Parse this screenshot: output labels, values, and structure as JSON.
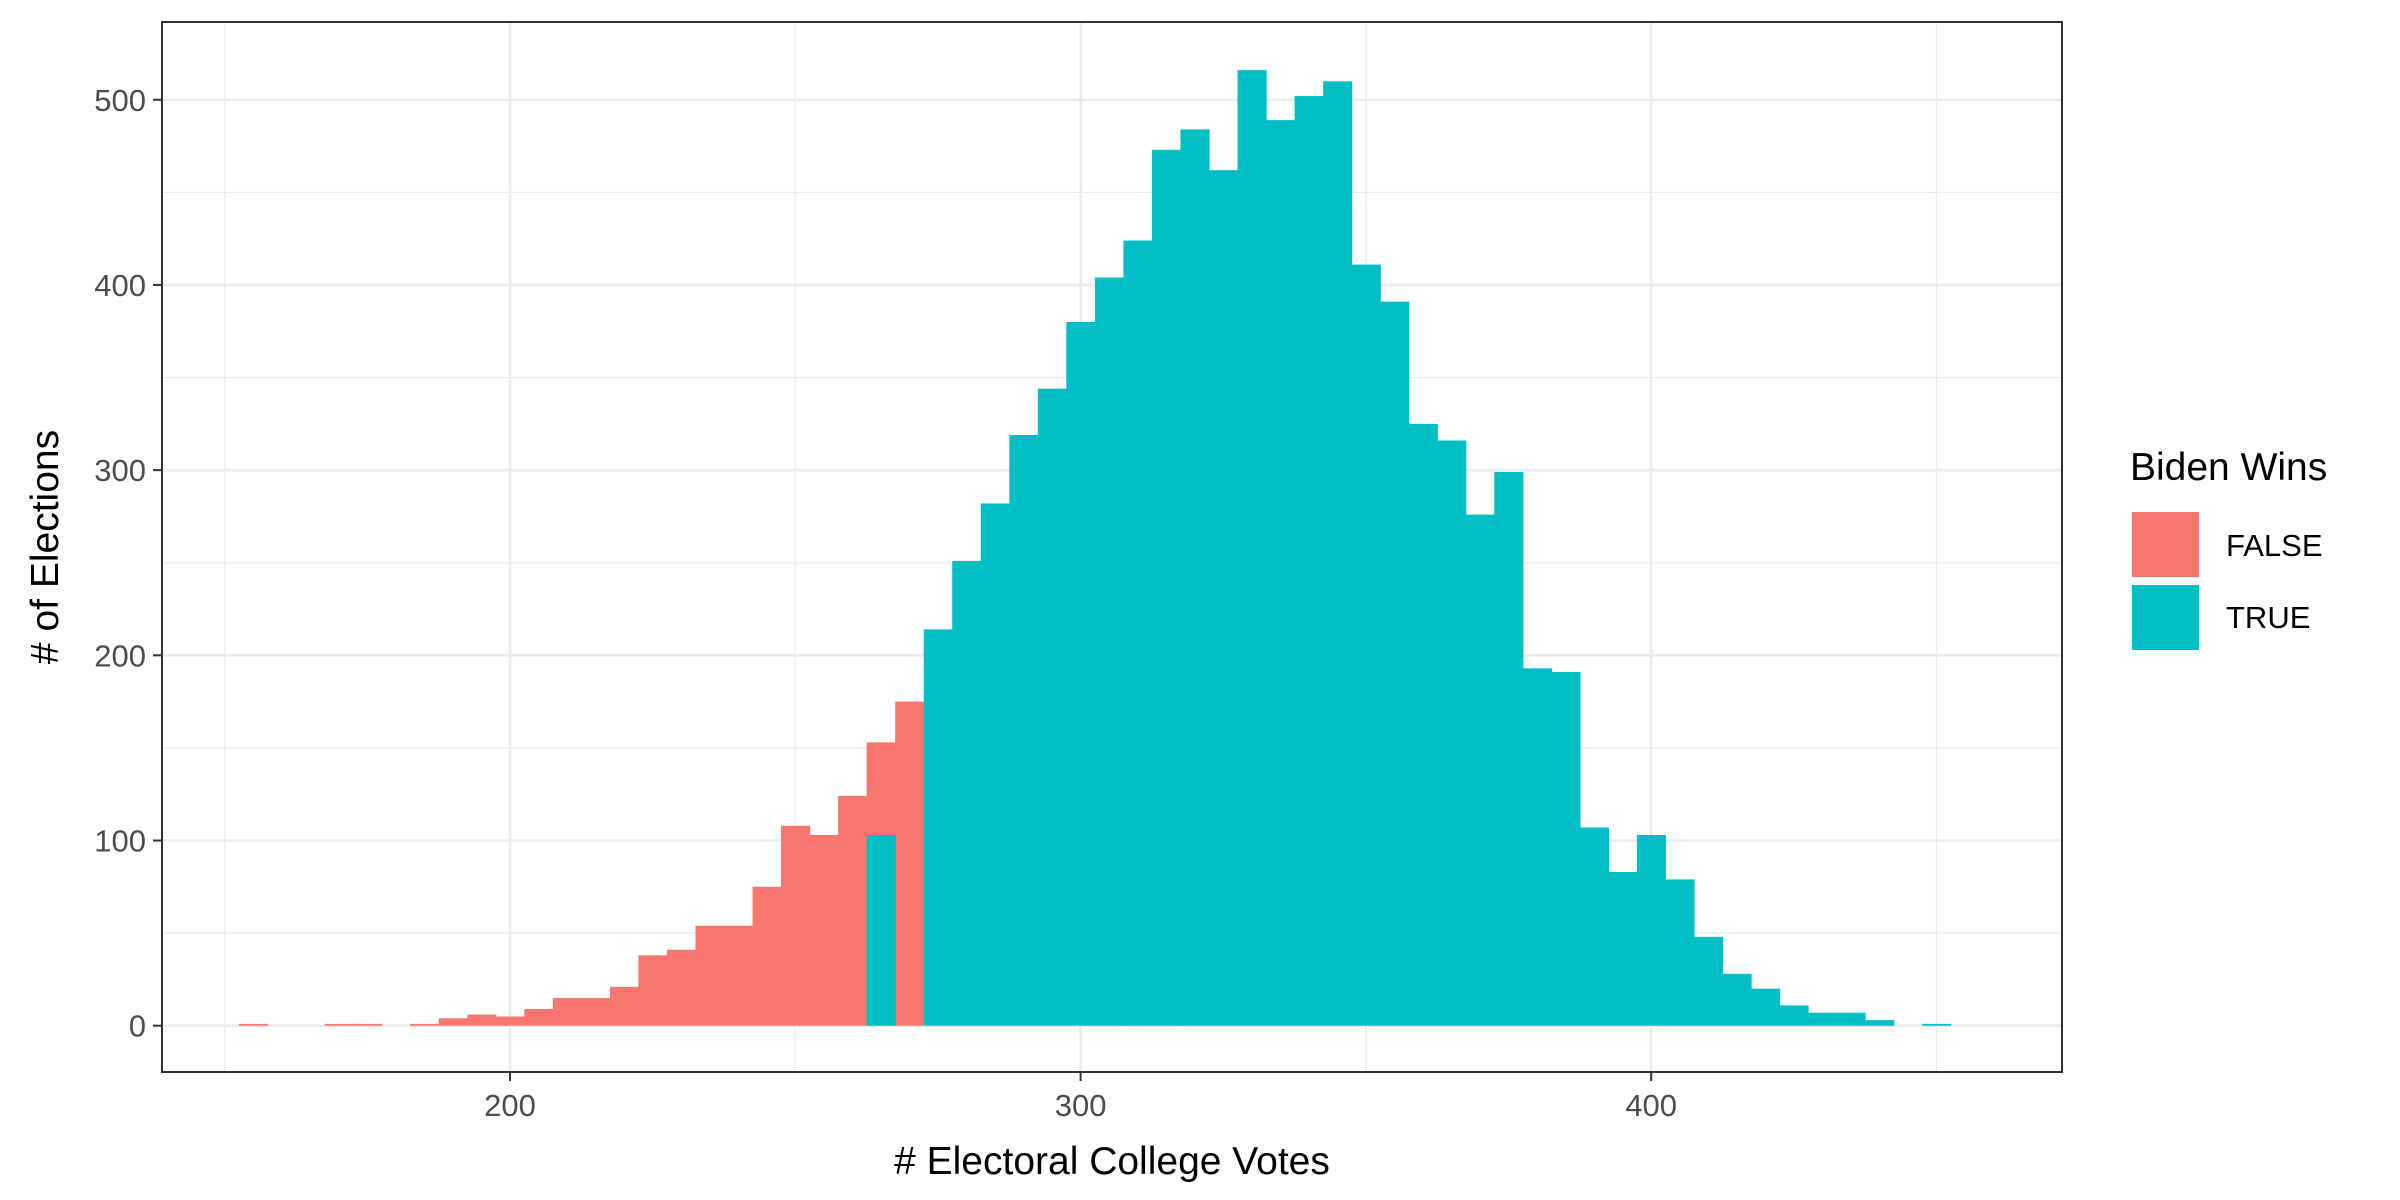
{
  "chart_data": {
    "type": "bar",
    "xlabel": "# Electoral College Votes",
    "ylabel": "# of Elections",
    "xlim": [
      139,
      472
    ],
    "ylim": [
      -25,
      542
    ],
    "binwidth": 5,
    "x_ticks": [
      200,
      300,
      400
    ],
    "y_ticks": [
      0,
      100,
      200,
      300,
      400,
      500
    ],
    "grid": true,
    "legend": {
      "title": "Biden Wins",
      "placement": "right",
      "entries": [
        {
          "label": "FALSE",
          "color": "#F8766D"
        },
        {
          "label": "TRUE",
          "color": "#00BFC4"
        }
      ]
    },
    "series": [
      {
        "name": "FALSE",
        "color": "#F8766D",
        "bin_centers": [
          155,
          160,
          165,
          170,
          175,
          180,
          185,
          190,
          195,
          200,
          205,
          210,
          215,
          220,
          225,
          230,
          235,
          240,
          245,
          250,
          255,
          260,
          265,
          270
        ],
        "values": [
          1,
          0,
          0,
          1,
          1,
          0,
          1,
          4,
          6,
          5,
          9,
          15,
          15,
          21,
          38,
          41,
          54,
          54,
          75,
          108,
          103,
          124,
          153,
          175
        ]
      },
      {
        "name": "TRUE",
        "color": "#00BFC4",
        "bin_centers": [
          265,
          270,
          275,
          280,
          285,
          290,
          295,
          300,
          305,
          310,
          315,
          320,
          325,
          330,
          335,
          340,
          345,
          350,
          355,
          360,
          365,
          370,
          375,
          380,
          385,
          390,
          395,
          400,
          405,
          410,
          415,
          420,
          425,
          430,
          435,
          440,
          445,
          450
        ],
        "values": [
          103,
          0,
          214,
          251,
          282,
          319,
          344,
          380,
          404,
          424,
          473,
          484,
          462,
          516,
          489,
          502,
          510,
          411,
          391,
          325,
          316,
          276,
          299,
          193,
          191,
          107,
          83,
          103,
          79,
          48,
          28,
          20,
          11,
          7,
          7,
          3,
          0,
          1
        ]
      }
    ]
  }
}
